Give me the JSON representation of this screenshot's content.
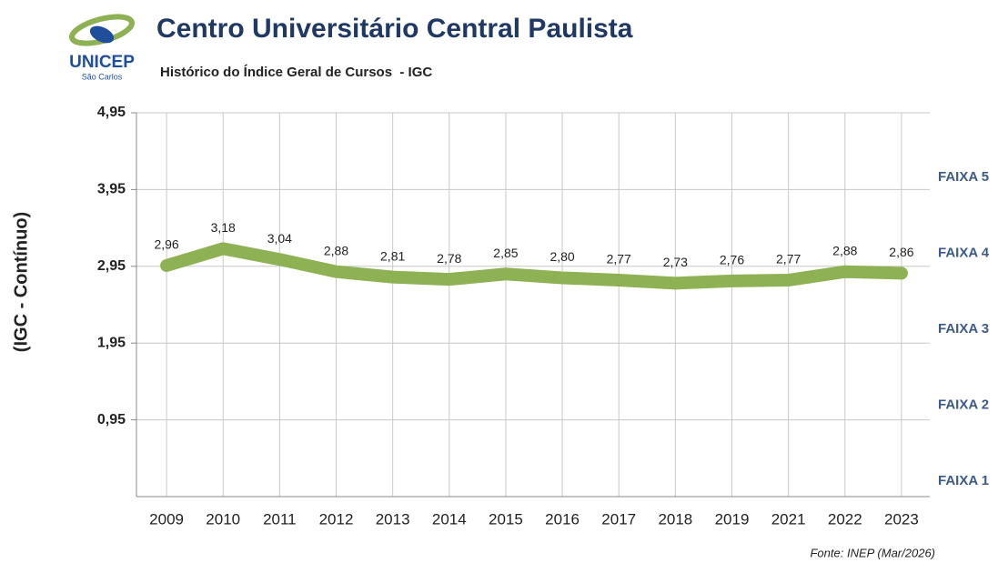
{
  "logo": {
    "name": "UNICEP",
    "place": "São Carlos"
  },
  "chart_data": {
    "type": "line",
    "title": "Centro Universitário Central Paulista",
    "subtitle": "Histórico do Índice Geral de Cursos  - IGC",
    "y_label": "(IGC - Contínuo)",
    "source": "Fonte: INEP (Mar/2026)",
    "categories": [
      "2009",
      "2010",
      "2011",
      "2012",
      "2013",
      "2014",
      "2015",
      "2016",
      "2017",
      "2018",
      "2019",
      "2021",
      "2022",
      "2023"
    ],
    "values": [
      2.96,
      3.18,
      3.04,
      2.88,
      2.81,
      2.78,
      2.85,
      2.8,
      2.77,
      2.73,
      2.76,
      2.77,
      2.88,
      2.86
    ],
    "value_labels": [
      "2,96",
      "3,18",
      "3,04",
      "2,88",
      "2,81",
      "2,78",
      "2,85",
      "2,80",
      "2,77",
      "2,73",
      "2,76",
      "2,77",
      "2,88",
      "2,86"
    ],
    "color": "#8db153",
    "ylim": [
      -0.05,
      4.95
    ],
    "yticks": [
      {
        "value": 0.95,
        "label": "0,95"
      },
      {
        "value": 1.95,
        "label": "1,95"
      },
      {
        "value": 2.95,
        "label": "2,95"
      },
      {
        "value": 3.95,
        "label": "3,95"
      },
      {
        "value": 4.95,
        "label": "4,95"
      }
    ],
    "grid": true,
    "annotations": [
      "FAIXA 5",
      "FAIXA 4",
      "FAIXA 3",
      "FAIXA 2",
      "FAIXA 1"
    ]
  }
}
